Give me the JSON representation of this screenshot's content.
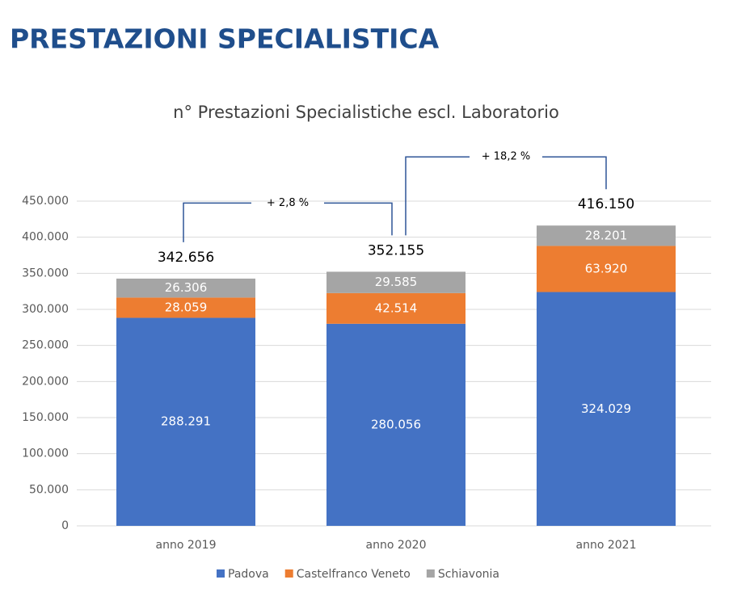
{
  "page_title": "PRESTAZIONI SPECIALISTICA",
  "chart_data": {
    "type": "stacked_bar",
    "title": "n° Prestazioni Specialistiche escl. Laboratorio",
    "categories": [
      "anno 2019",
      "anno 2020",
      "anno 2021"
    ],
    "series": [
      {
        "name": "Padova",
        "color": "#4472c4",
        "values": [
          288291,
          280056,
          324029
        ],
        "value_labels": [
          "288.291",
          "280.056",
          "324.029"
        ]
      },
      {
        "name": "Castelfranco Veneto",
        "color": "#ed7d31",
        "values": [
          28059,
          42514,
          63920
        ],
        "value_labels": [
          "28.059",
          "42.514",
          "63.920"
        ]
      },
      {
        "name": "Schiavonia",
        "color": "#a5a5a5",
        "values": [
          26306,
          29585,
          28201
        ],
        "value_labels": [
          "26.306",
          "29.585",
          "28.201"
        ]
      }
    ],
    "totals": {
      "values": [
        342656,
        352155,
        416150
      ],
      "value_labels": [
        "342.656",
        "352.155",
        "416.150"
      ]
    },
    "annotations": [
      "+ 2,8 %",
      "+ 18,2 %"
    ],
    "ylim": [
      0,
      450000
    ],
    "yticks": [
      0,
      {
        "value": 50000,
        "label": "50.000"
      },
      {
        "value": 100000,
        "label": "100.000"
      },
      {
        "value": 150000,
        "label": "150.000"
      },
      {
        "value": 200000,
        "label": "200.000"
      },
      {
        "value": 250000,
        "label": "250.000"
      },
      {
        "value": 300000,
        "label": "300.000"
      },
      {
        "value": 350000,
        "label": "350.000"
      },
      {
        "value": 400000,
        "label": "400.000"
      },
      {
        "value": 450000,
        "label": "450.000"
      }
    ],
    "grid": true,
    "legend": "bottom"
  }
}
